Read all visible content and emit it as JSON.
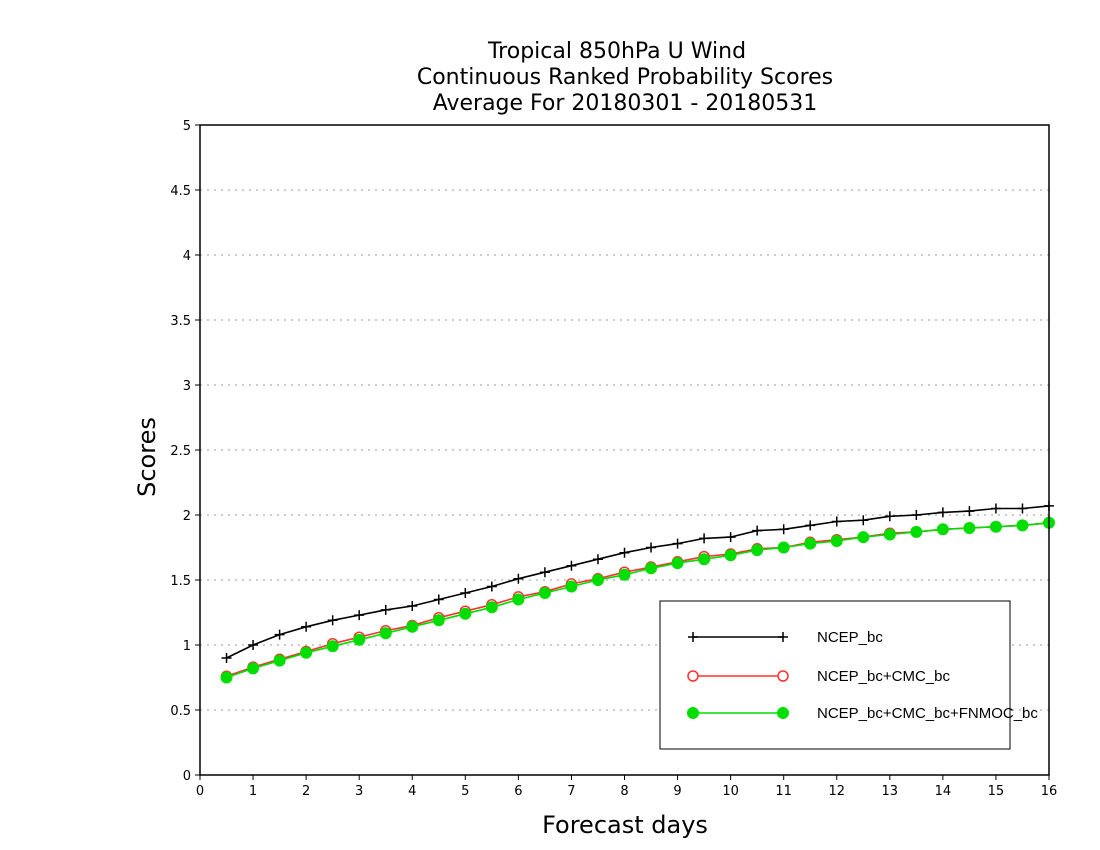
{
  "chart_data": {
    "type": "line",
    "title_lines": [
      "Tropical 850hPa U Wind",
      "Continuous Ranked Probability Scores",
      "Average For 20180301 - 20180531"
    ],
    "xlabel": "Forecast days",
    "ylabel": "Scores",
    "xlim": [
      0,
      16
    ],
    "ylim": [
      0,
      5
    ],
    "x_ticks": [
      0,
      1,
      2,
      3,
      4,
      5,
      6,
      7,
      8,
      9,
      10,
      11,
      12,
      13,
      14,
      15,
      16
    ],
    "y_ticks": [
      0,
      0.5,
      1,
      1.5,
      2,
      2.5,
      3,
      3.5,
      4,
      4.5,
      5
    ],
    "y_tick_labels": [
      "0",
      "0.5",
      "1",
      "1.5",
      "2",
      "2.5",
      "3",
      "3.5",
      "4",
      "4.5",
      "5"
    ],
    "grid": "horizontal dotted",
    "legend_position": "bottom-right",
    "x": [
      0.5,
      1,
      1.5,
      2,
      2.5,
      3,
      3.5,
      4,
      4.5,
      5,
      5.5,
      6,
      6.5,
      7,
      7.5,
      8,
      8.5,
      9,
      9.5,
      10,
      10.5,
      11,
      11.5,
      12,
      12.5,
      13,
      13.5,
      14,
      14.5,
      15,
      15.5,
      16
    ],
    "series": [
      {
        "name": "NCEP_bc",
        "color": "#000000",
        "marker": "plus",
        "values": [
          0.9,
          1.0,
          1.08,
          1.14,
          1.19,
          1.23,
          1.27,
          1.3,
          1.35,
          1.4,
          1.45,
          1.51,
          1.56,
          1.61,
          1.66,
          1.71,
          1.75,
          1.78,
          1.82,
          1.83,
          1.88,
          1.89,
          1.92,
          1.95,
          1.96,
          1.99,
          2.0,
          2.02,
          2.03,
          2.05,
          2.05,
          2.07
        ]
      },
      {
        "name": "NCEP_bc+CMC_bc",
        "color": "#ff3030",
        "marker": "open-circle",
        "values": [
          0.76,
          0.83,
          0.89,
          0.95,
          1.01,
          1.06,
          1.11,
          1.15,
          1.21,
          1.26,
          1.31,
          1.37,
          1.41,
          1.47,
          1.51,
          1.56,
          1.6,
          1.64,
          1.68,
          1.7,
          1.74,
          1.75,
          1.79,
          1.81,
          1.83,
          1.86,
          1.87,
          1.89,
          1.9,
          1.91,
          1.92,
          1.94
        ]
      },
      {
        "name": "NCEP_bc+CMC_bc+FNMOC_bc",
        "color": "#00dd00",
        "marker": "filled-circle",
        "values": [
          0.75,
          0.82,
          0.88,
          0.94,
          0.99,
          1.04,
          1.09,
          1.14,
          1.19,
          1.24,
          1.29,
          1.35,
          1.4,
          1.45,
          1.5,
          1.54,
          1.59,
          1.63,
          1.66,
          1.69,
          1.73,
          1.75,
          1.78,
          1.8,
          1.83,
          1.85,
          1.87,
          1.89,
          1.9,
          1.91,
          1.92,
          1.94
        ]
      }
    ]
  }
}
